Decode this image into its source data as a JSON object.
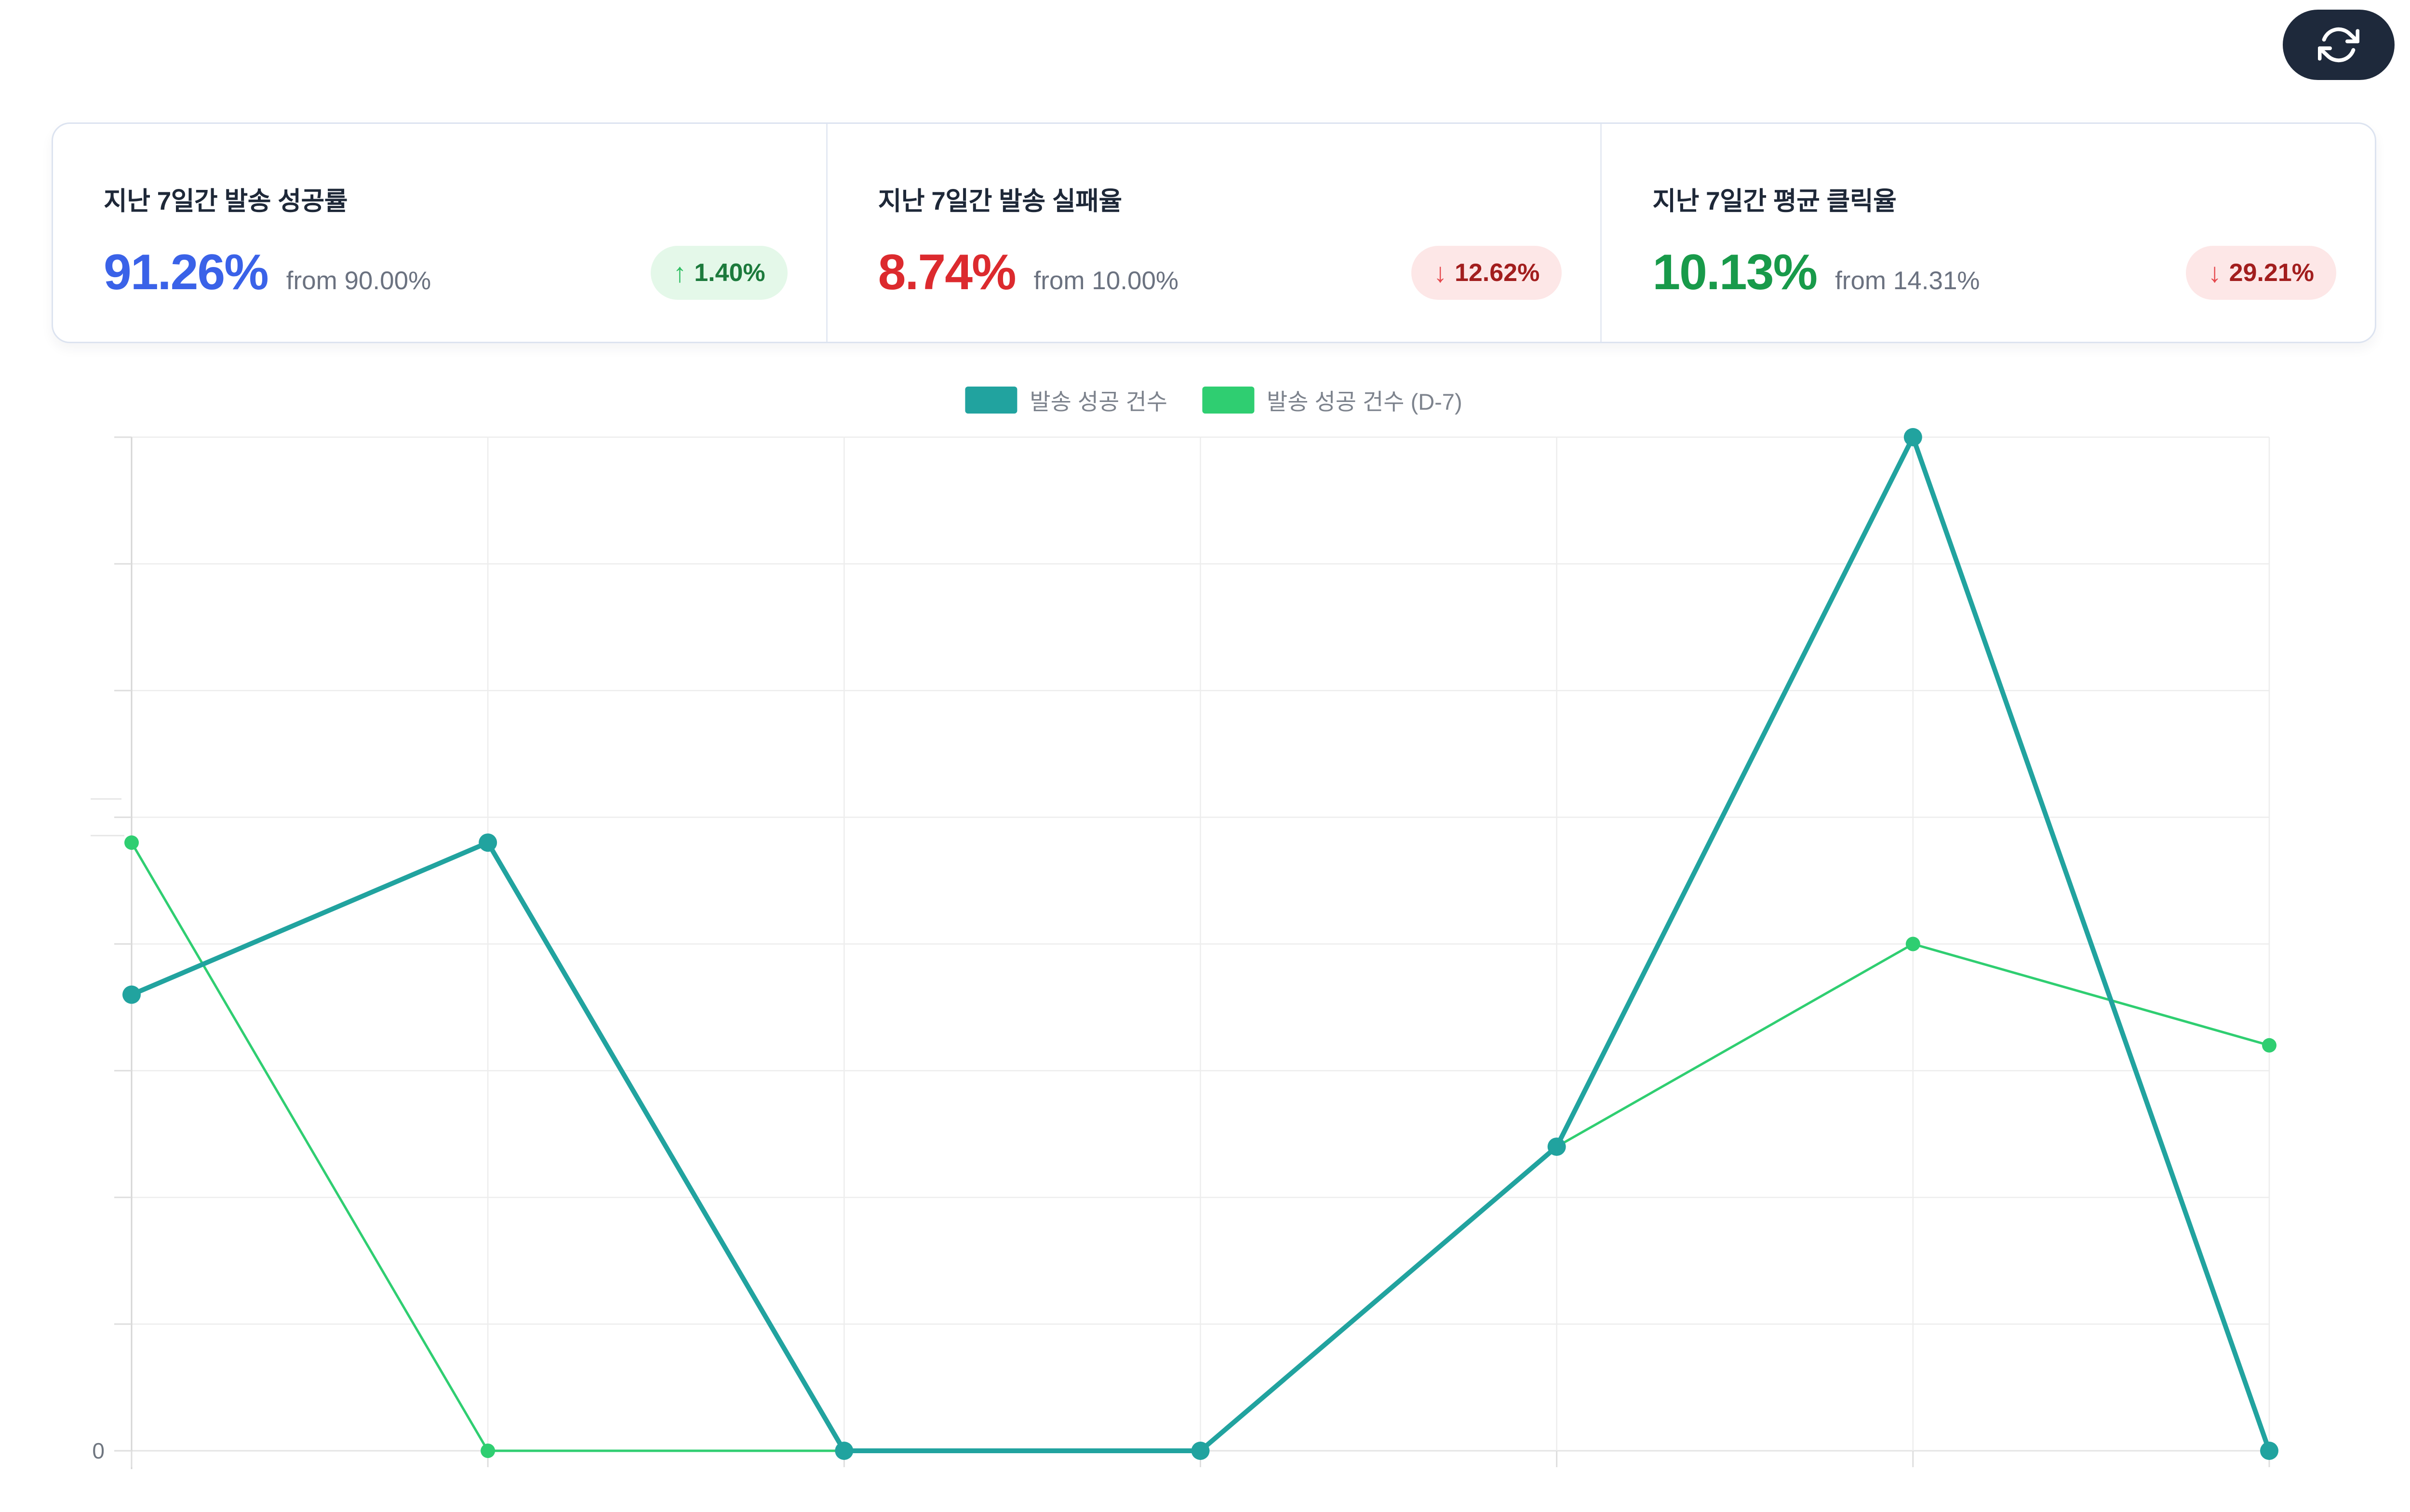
{
  "colors": {
    "page_background": "#ffffff",
    "card_border": "#dce3f0",
    "refresh_button_bg": "#1e293b",
    "refresh_icon": "#ffffff",
    "gridline": "#ededed",
    "axis_line": "#d5d5d5",
    "zero_label_color": "#6f7680"
  },
  "header": {
    "refresh_icon": "refresh-icon"
  },
  "stat_cards": [
    {
      "title": "지난 7일간 발송 성공률",
      "value": "91.26%",
      "value_color": "#3a62e8",
      "from_label": "from 90.00%",
      "badge": {
        "arrow": "↑",
        "text": "1.40%",
        "bg": "#e4f8e9",
        "arrow_color": "#2fbe62",
        "text_color": "#1c7a3c"
      }
    },
    {
      "title": "지난 7일간 발송 실패율",
      "value": "8.74%",
      "value_color": "#dc2a2e",
      "from_label": "from 10.00%",
      "badge": {
        "arrow": "↓",
        "text": "12.62%",
        "bg": "#fde7e7",
        "arrow_color": "#e5484d",
        "text_color": "#a21e1e"
      }
    },
    {
      "title": "지난 7일간 평균 클릭율",
      "value": "10.13%",
      "value_color": "#189a4a",
      "from_label": "from 14.31%",
      "badge": {
        "arrow": "↓",
        "text": "29.21%",
        "bg": "#fde7e7",
        "arrow_color": "#e5484d",
        "text_color": "#a21e1e"
      }
    }
  ],
  "chart_data": {
    "type": "line",
    "title": "",
    "xlabel": "",
    "ylabel": "",
    "x_count": 7,
    "x_tick_labels_visible": false,
    "grid": true,
    "legend_position": "top-center",
    "y_axis": {
      "min": 0,
      "max": 200,
      "tick_step": 25,
      "visible_labels": [
        "0"
      ]
    },
    "zero_label": "0",
    "series": [
      {
        "name": "발송 성공 건수",
        "color": "#21a39f",
        "line_width": 10,
        "dot_radius": 19,
        "values": [
          90,
          120,
          0,
          0,
          60,
          200,
          0
        ]
      },
      {
        "name": "발송 성공 건수 (D-7)",
        "color": "#2fce71",
        "line_width": 5,
        "dot_radius": 15,
        "values": [
          120,
          0,
          0,
          0,
          60,
          100,
          80
        ]
      }
    ]
  }
}
